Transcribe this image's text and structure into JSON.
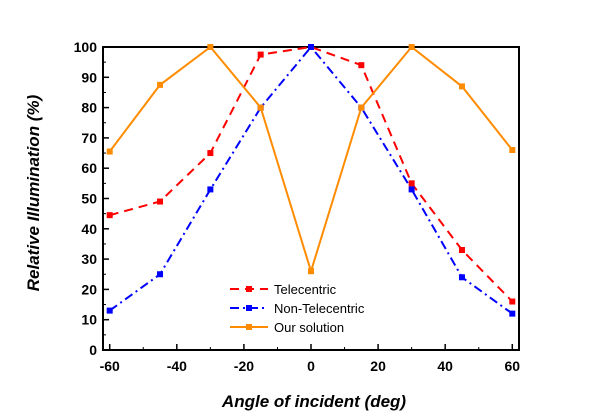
{
  "chart_data": {
    "type": "line",
    "xlabel": "Angle of incident (deg)",
    "ylabel": "Relative Illumination (%)",
    "xlim": [
      -62,
      62
    ],
    "ylim": [
      0,
      100
    ],
    "xticks": [
      -60,
      -40,
      -20,
      0,
      20,
      40,
      60
    ],
    "yticks": [
      0,
      10,
      20,
      30,
      40,
      50,
      60,
      70,
      80,
      90,
      100
    ],
    "legend_position": "bottom-center",
    "series": [
      {
        "name": "Telecentric",
        "color": "#ff0000",
        "dash": "dash",
        "marker": "square",
        "points": [
          [
            -60,
            44.5
          ],
          [
            -45,
            49
          ],
          [
            -30,
            65
          ],
          [
            -15,
            97.5
          ],
          [
            0,
            100
          ],
          [
            15,
            94
          ],
          [
            30,
            55
          ],
          [
            45,
            33
          ],
          [
            60,
            16
          ]
        ]
      },
      {
        "name": "Non-Telecentric",
        "color": "#0000ff",
        "dash": "dashdot",
        "marker": "square",
        "points": [
          [
            -60,
            13
          ],
          [
            -45,
            25
          ],
          [
            -30,
            53
          ],
          [
            -15,
            80
          ],
          [
            0,
            100
          ],
          [
            15,
            80
          ],
          [
            30,
            53
          ],
          [
            45,
            24
          ],
          [
            60,
            12
          ]
        ]
      },
      {
        "name": "Our solution",
        "color": "#ff8c00",
        "dash": "solid",
        "marker": "square",
        "points": [
          [
            -60,
            65.5
          ],
          [
            -45,
            87.5
          ],
          [
            -30,
            100
          ],
          [
            -15,
            80
          ],
          [
            0,
            26
          ],
          [
            15,
            80
          ],
          [
            30,
            100
          ],
          [
            45,
            87
          ],
          [
            60,
            66
          ]
        ]
      }
    ]
  }
}
